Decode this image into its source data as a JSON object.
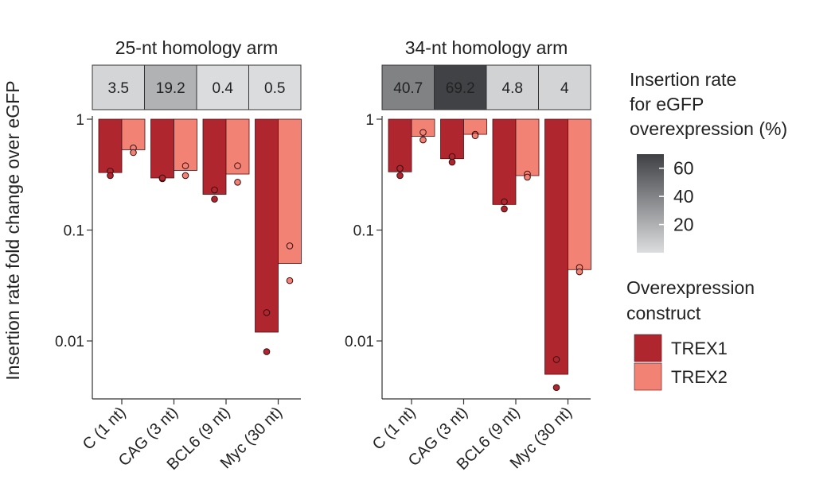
{
  "chart_data": {
    "type": "bar",
    "ylabel": "Insertion rate fold change over eGFP",
    "yscale": "log",
    "ylim": [
      0.003,
      1
    ],
    "yticks": [
      {
        "value": 1,
        "label": "1"
      },
      {
        "value": 0.1,
        "label": "0.1"
      },
      {
        "value": 0.01,
        "label": "0.01"
      }
    ],
    "categories": [
      "C (1 nt)",
      "CAG (3 nt)",
      "BCL6 (9 nt)",
      "Myc (30 nt)"
    ],
    "colors": {
      "TREX1": "#b0262e",
      "TREX2": "#f28273"
    },
    "panels": [
      {
        "title": "25-nt homology arm",
        "heat_values": [
          3.5,
          19.2,
          0.4,
          0.5
        ],
        "heat_labels": [
          "3.5",
          "19.2",
          "0.4",
          "0.5"
        ],
        "series": [
          {
            "name": "TREX1",
            "values": [
              0.33,
              0.295,
              0.21,
              0.012
            ],
            "points": [
              [
                0.34,
                0.31
              ],
              [
                0.29,
                0.295
              ],
              [
                0.23,
                0.19
              ],
              [
                0.018,
                0.008
              ]
            ]
          },
          {
            "name": "TREX2",
            "values": [
              0.53,
              0.345,
              0.32,
              0.05
            ],
            "points": [
              [
                0.55,
                0.5
              ],
              [
                0.38,
                0.31
              ],
              [
                0.38,
                0.27
              ],
              [
                0.072,
                0.035
              ]
            ]
          }
        ]
      },
      {
        "title": "34-nt homology arm",
        "heat_values": [
          40.7,
          69.2,
          4.8,
          4
        ],
        "heat_labels": [
          "40.7",
          "69.2",
          "4.8",
          "4"
        ],
        "series": [
          {
            "name": "TREX1",
            "values": [
              0.335,
              0.44,
              0.17,
              0.005
            ],
            "points": [
              [
                0.36,
                0.31
              ],
              [
                0.46,
                0.41
              ],
              [
                0.18,
                0.155
              ],
              [
                0.0068,
                0.0038
              ]
            ]
          },
          {
            "name": "TREX2",
            "values": [
              0.7,
              0.73,
              0.31,
              0.044
            ],
            "points": [
              [
                0.76,
                0.65
              ],
              [
                0.73,
                0.71
              ],
              [
                0.32,
                0.3
              ],
              [
                0.046,
                0.042
              ]
            ]
          }
        ]
      }
    ],
    "heat_legend": {
      "title": [
        "Insertion rate",
        "for eGFP",
        "overexpression (%)"
      ],
      "ticks": [
        {
          "value": 60,
          "label": "60"
        },
        {
          "value": 40,
          "label": "40"
        },
        {
          "value": 20,
          "label": "20"
        }
      ],
      "range": [
        0,
        70
      ]
    },
    "legend": {
      "title": [
        "Overexpression",
        "construct"
      ],
      "entries": [
        "TREX1",
        "TREX2"
      ]
    }
  }
}
